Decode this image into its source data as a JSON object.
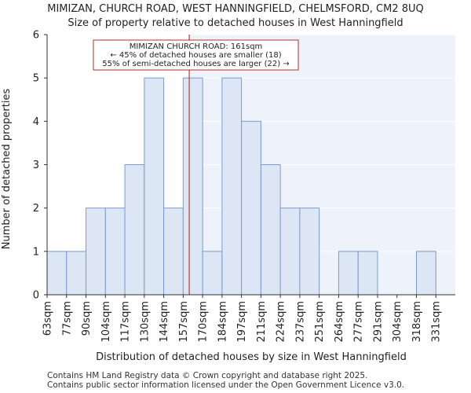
{
  "title_line1": "MIMIZAN, CHURCH ROAD, WEST HANNINGFIELD, CHELMSFORD, CM2 8UQ",
  "title_line2": "Size of property relative to detached houses in West Hanningfield",
  "footer_line1": "Contains HM Land Registry data © Crown copyright and database right 2025.",
  "footer_line2": "Contains public sector information licensed under the Open Government Licence v3.0.",
  "chart_data": {
    "type": "bar",
    "categories": [
      "63sqm",
      "77sqm",
      "90sqm",
      "104sqm",
      "117sqm",
      "130sqm",
      "144sqm",
      "157sqm",
      "170sqm",
      "184sqm",
      "197sqm",
      "211sqm",
      "224sqm",
      "237sqm",
      "251sqm",
      "264sqm",
      "277sqm",
      "291sqm",
      "304sqm",
      "318sqm",
      "331sqm"
    ],
    "values": [
      1,
      1,
      2,
      2,
      3,
      5,
      2,
      5,
      1,
      5,
      4,
      3,
      2,
      2,
      0,
      1,
      1,
      0,
      0,
      1,
      0
    ],
    "xlabel": "Distribution of detached houses by size in West Hanningfield",
    "ylabel": "Number of detached properties",
    "ylim": [
      0,
      6
    ],
    "yticks": [
      0,
      1,
      2,
      3,
      4,
      5,
      6
    ],
    "grid": true,
    "bar_color": "#dce6f5",
    "bar_edge_color": "#7b9bd1",
    "shaded_region_color": "#eef2fb",
    "marker": {
      "value_sqm": 161,
      "color": "#c0392b"
    },
    "annotation": {
      "line1": "MIMIZAN CHURCH ROAD: 161sqm",
      "line2": "← 45% of detached houses are smaller (18)",
      "line3": "55% of semi-detached houses are larger (22) →"
    }
  }
}
